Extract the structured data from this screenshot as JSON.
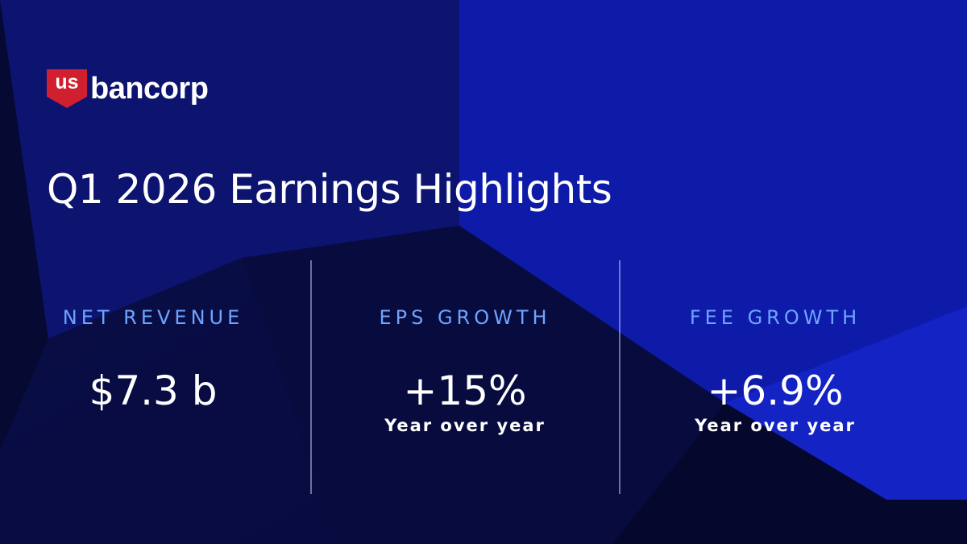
{
  "logo": {
    "mark": "us",
    "name": "bancorp"
  },
  "title": "Q1 2026 Earnings Highlights",
  "metrics": [
    {
      "label": "NET REVENUE",
      "value": "$7.3 b"
    },
    {
      "label": "EPS GROWTH",
      "value": "+15%",
      "note": "Year over year"
    },
    {
      "label": "FEE GROWTH",
      "value": "+6.9%",
      "note": "Year over year"
    }
  ]
}
